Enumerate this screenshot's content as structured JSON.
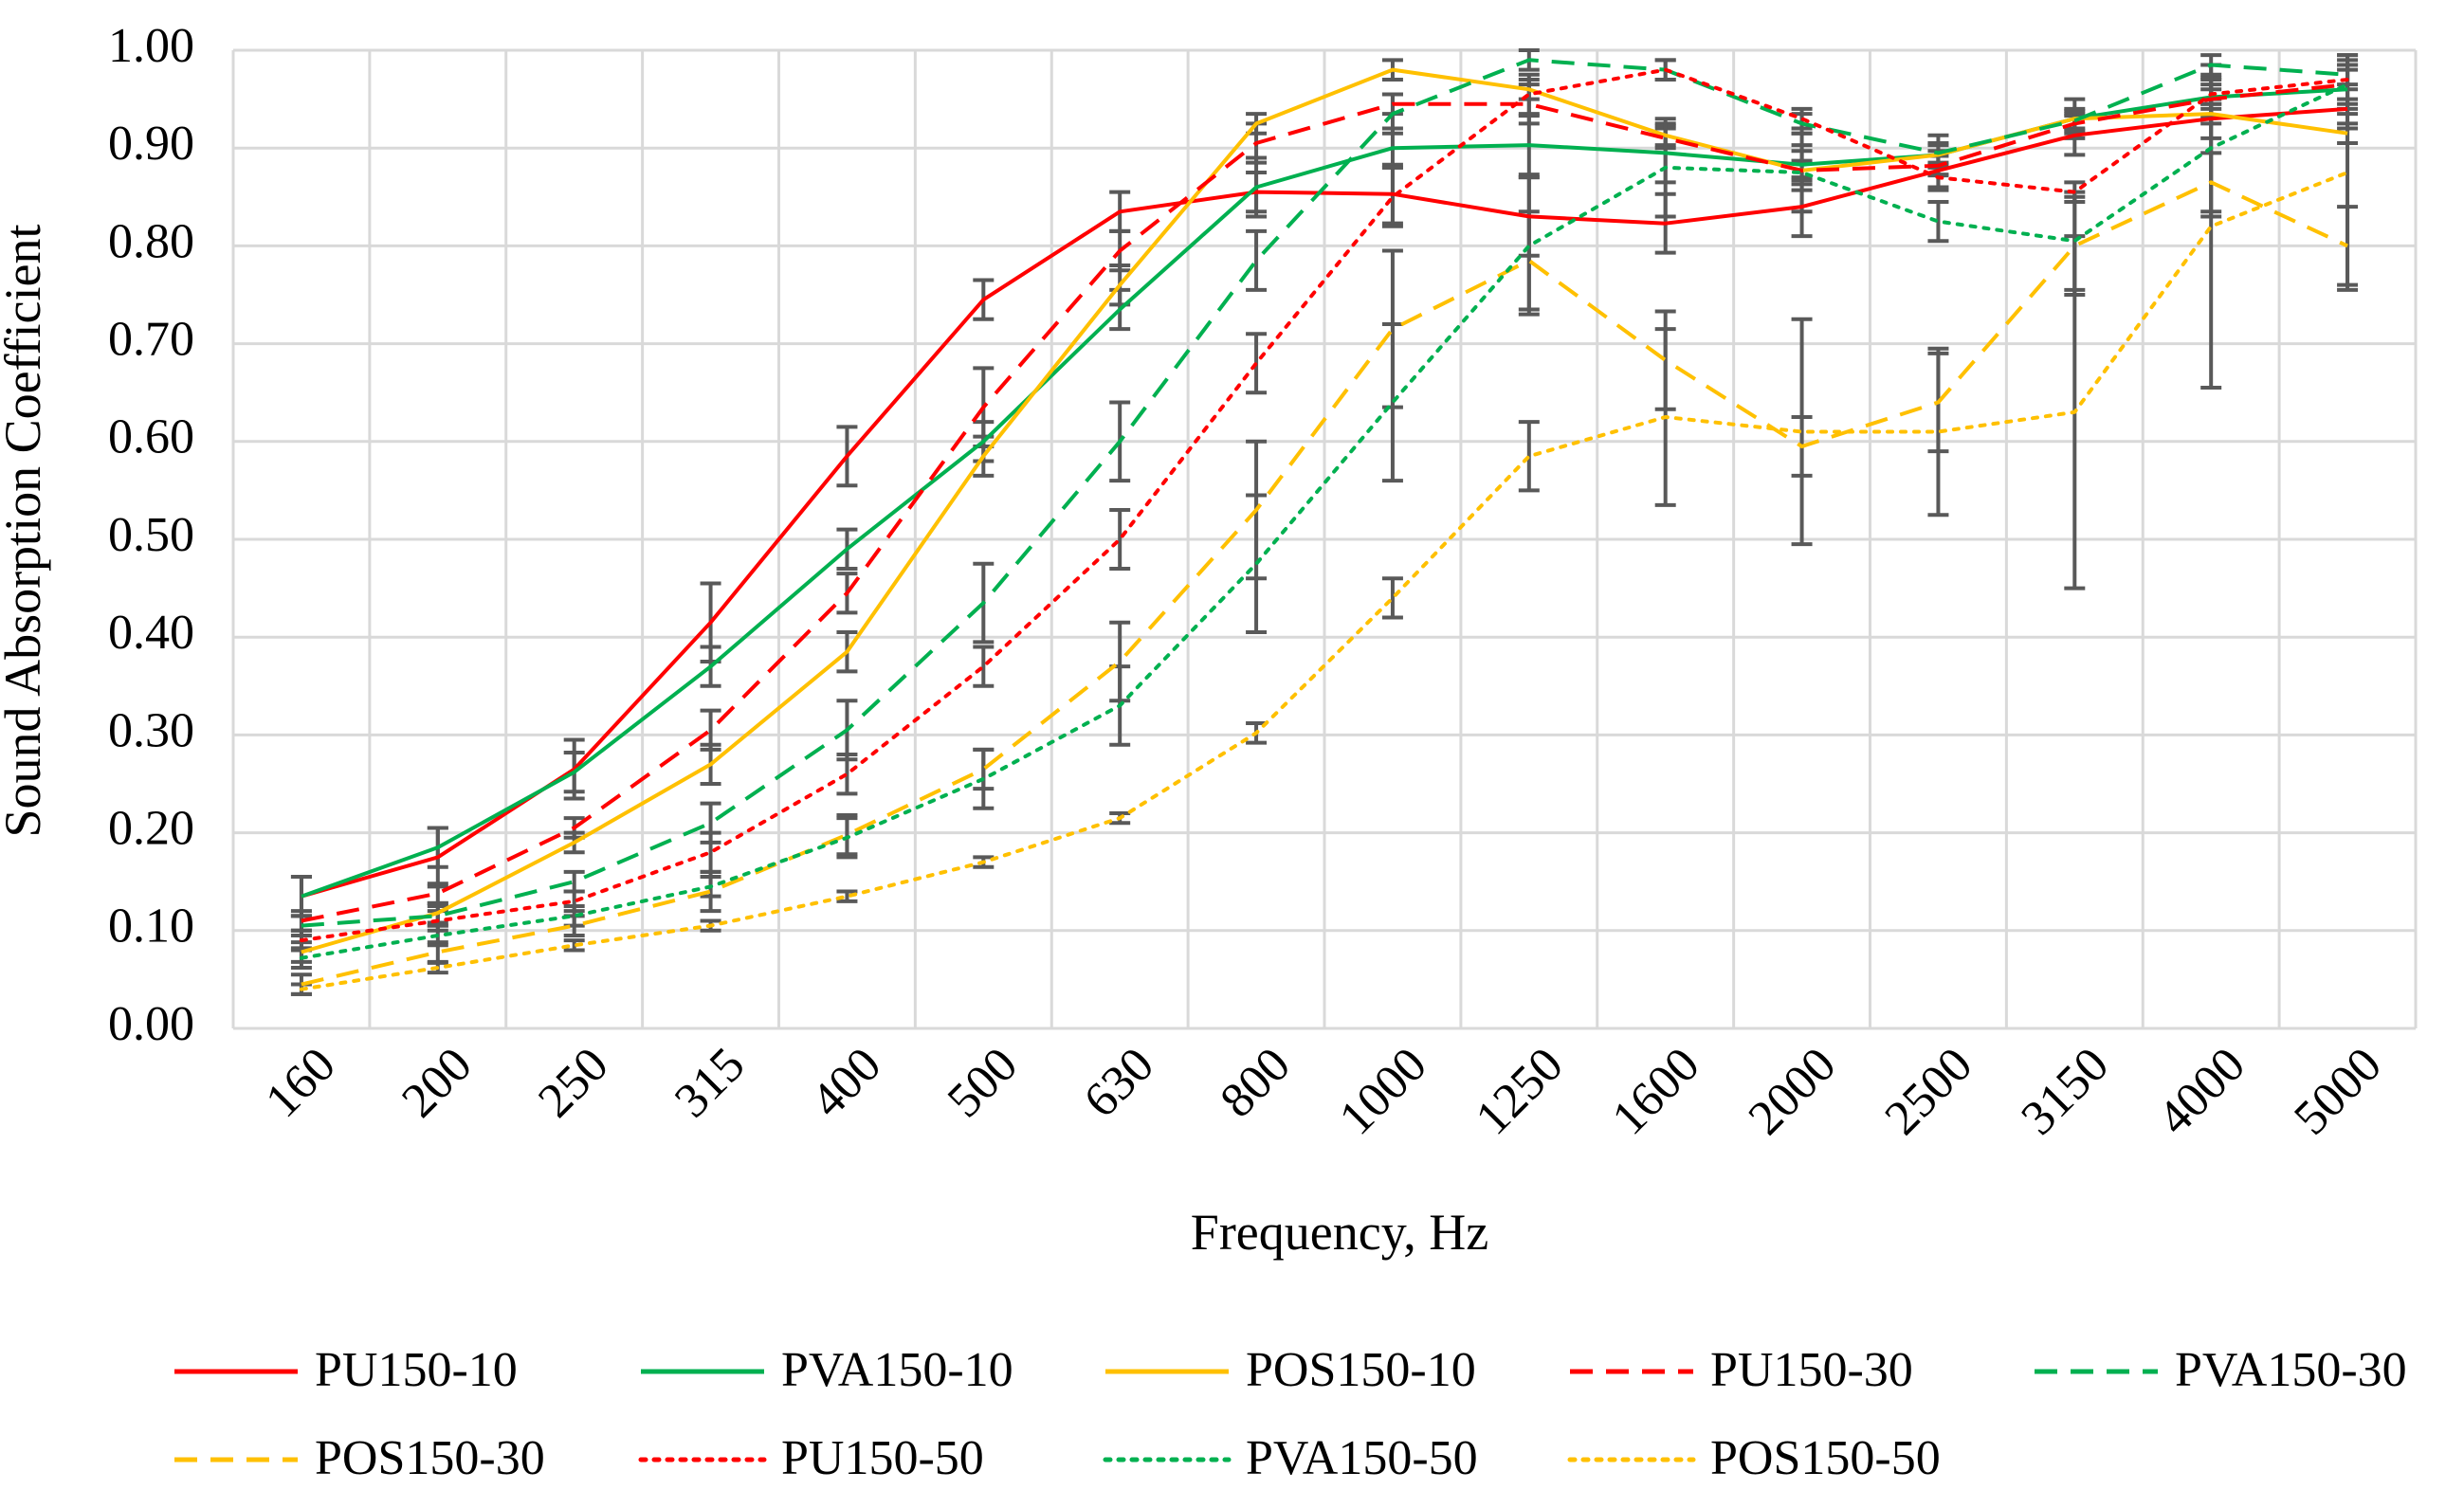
{
  "chart_data": {
    "type": "line",
    "xlabel": "Frequency, Hz",
    "ylabel": "Sound Absorption Coefficient",
    "ylim": [
      0,
      1
    ],
    "yticks": [
      "0.00",
      "0.10",
      "0.20",
      "0.30",
      "0.40",
      "0.50",
      "0.60",
      "0.70",
      "0.80",
      "0.90",
      "1.00"
    ],
    "categories": [
      "160",
      "200",
      "250",
      "315",
      "400",
      "500",
      "630",
      "800",
      "1000",
      "1250",
      "1600",
      "2000",
      "2500",
      "3150",
      "4000",
      "5000"
    ],
    "grid": true,
    "legend_position": "bottom",
    "series": [
      {
        "name": "PU150-10",
        "color": "#ff0000",
        "dash": "solid",
        "values": [
          0.135,
          0.175,
          0.265,
          0.415,
          0.585,
          0.745,
          0.835,
          0.855,
          0.853,
          0.83,
          0.823,
          0.84,
          0.877,
          0.913,
          0.93,
          0.94
        ],
        "errors": [
          0.02,
          0.03,
          0.03,
          0.04,
          0.03,
          0.02,
          0.02,
          0.02,
          0.03,
          0.04,
          0.03,
          0.03,
          0.02,
          0.02,
          0.02,
          0.02
        ]
      },
      {
        "name": "PVA150-10",
        "color": "#00b050",
        "dash": "solid",
        "values": [
          0.135,
          0.185,
          0.262,
          0.37,
          0.49,
          0.6,
          0.735,
          0.86,
          0.9,
          0.903,
          0.895,
          0.883,
          0.893,
          0.93,
          0.952,
          0.96
        ],
        "errors": [
          0.02,
          0.02,
          0.02,
          0.02,
          0.02,
          0.02,
          0.02,
          0.03,
          0.02,
          0.03,
          0.03,
          0.02,
          0.02,
          0.02,
          0.02,
          0.02
        ]
      },
      {
        "name": "POS150-10",
        "color": "#ffc000",
        "dash": "solid",
        "values": [
          0.078,
          0.118,
          0.19,
          0.27,
          0.385,
          0.585,
          0.76,
          0.925,
          0.98,
          0.96,
          0.913,
          0.877,
          0.893,
          0.93,
          0.935,
          0.915
        ],
        "errors": [
          0.01,
          0.01,
          0.01,
          0.02,
          0.02,
          0.02,
          0.02,
          0.01,
          0.01,
          0.01,
          0.01,
          0.01,
          0.01,
          0.01,
          0.01,
          0.01
        ]
      },
      {
        "name": "PU150-30",
        "color": "#ff0000",
        "dash": "dashed",
        "values": [
          0.11,
          0.138,
          0.205,
          0.305,
          0.445,
          0.635,
          0.795,
          0.905,
          0.945,
          0.945,
          0.91,
          0.877,
          0.882,
          0.925,
          0.95,
          0.965
        ],
        "errors": [
          0.01,
          0.01,
          0.01,
          0.02,
          0.02,
          0.04,
          0.02,
          0.02,
          0.01,
          0.02,
          0.01,
          0.02,
          0.01,
          0.01,
          0.01,
          0.02
        ]
      },
      {
        "name": "PVA150-30",
        "color": "#00b050",
        "dash": "dashed",
        "values": [
          0.105,
          0.115,
          0.15,
          0.21,
          0.305,
          0.435,
          0.6,
          0.785,
          0.935,
          0.99,
          0.98,
          0.925,
          0.895,
          0.928,
          0.985,
          0.975
        ],
        "errors": [
          0.01,
          0.01,
          0.01,
          0.02,
          0.03,
          0.04,
          0.04,
          0.03,
          0.02,
          0.01,
          0.01,
          0.01,
          0.01,
          0.01,
          0.01,
          0.01
        ]
      },
      {
        "name": "POS150-30",
        "color": "#ffc000",
        "dash": "dashed",
        "values": [
          0.045,
          0.078,
          0.105,
          0.14,
          0.198,
          0.265,
          0.375,
          0.53,
          0.715,
          0.785,
          0.683,
          0.595,
          0.64,
          0.8,
          0.865,
          0.8
        ],
        "errors": [
          0.01,
          0.01,
          0.01,
          0.02,
          0.02,
          0.02,
          0.04,
          0.07,
          0.08,
          0.05,
          0.05,
          0.03,
          0.05,
          0.05,
          0.03,
          0.04
        ]
      },
      {
        "name": "PU150-50",
        "color": "#ff0000",
        "dash": "dotted",
        "values": [
          0.09,
          0.11,
          0.13,
          0.18,
          0.26,
          0.37,
          0.5,
          0.68,
          0.85,
          0.955,
          0.98,
          0.93,
          0.87,
          0.855,
          0.955,
          0.97
        ],
        "errors": [
          0.01,
          0.01,
          0.01,
          0.02,
          0.02,
          0.02,
          0.03,
          0.03,
          0.03,
          0.02,
          0.01,
          0.01,
          0.01,
          0.01,
          0.01,
          0.02
        ]
      },
      {
        "name": "PVA150-50",
        "color": "#00b050",
        "dash": "dotted",
        "values": [
          0.072,
          0.095,
          0.115,
          0.145,
          0.195,
          0.255,
          0.33,
          0.475,
          0.64,
          0.8,
          0.88,
          0.875,
          0.825,
          0.805,
          0.9,
          0.965
        ],
        "errors": [
          0.01,
          0.01,
          0.01,
          0.01,
          0.02,
          0.03,
          0.04,
          0.07,
          0.08,
          0.07,
          0.05,
          0.04,
          0.02,
          0.05,
          0.07,
          0.03
        ]
      },
      {
        "name": "POS150-50",
        "color": "#ffc000",
        "dash": "dotted",
        "values": [
          0.04,
          0.062,
          0.085,
          0.105,
          0.135,
          0.17,
          0.215,
          0.302,
          0.44,
          0.585,
          0.625,
          0.61,
          0.61,
          0.63,
          0.82,
          0.875
        ],
        "errors": [
          0.005,
          0.005,
          0.005,
          0.005,
          0.005,
          0.005,
          0.005,
          0.01,
          0.02,
          0.035,
          0.09,
          0.115,
          0.085,
          0.18,
          0.165,
          0.12
        ]
      }
    ]
  }
}
